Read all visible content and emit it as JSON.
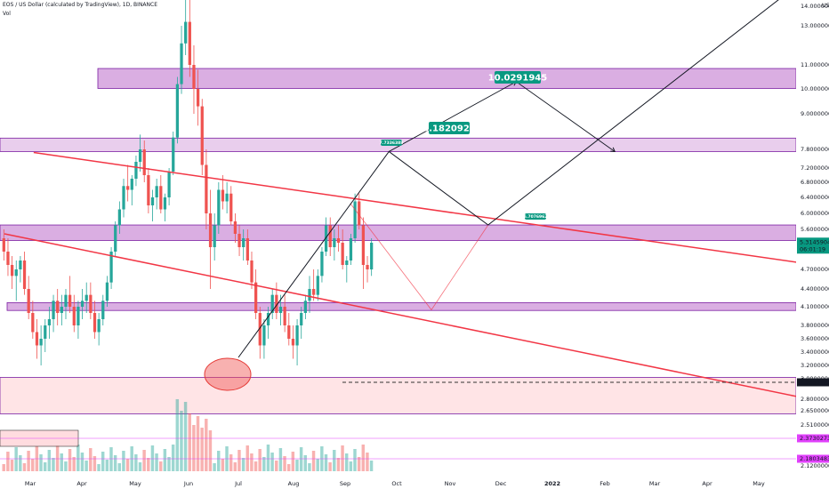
{
  "legend": {
    "title": "EOS / US Dollar (calculated by TradingView), 1D, BINANCE",
    "vol": "Vol"
  },
  "axis": {
    "currency": "USD",
    "y_ticks": [
      {
        "label": "14.0000000",
        "v": 14.0
      },
      {
        "label": "13.0000000",
        "v": 13.0
      },
      {
        "label": "11.0000000",
        "v": 11.0
      },
      {
        "label": "10.0000000",
        "v": 10.0
      },
      {
        "label": "9.0000000",
        "v": 9.0
      },
      {
        "label": "7.8000000",
        "v": 7.8
      },
      {
        "label": "7.2000000",
        "v": 7.2
      },
      {
        "label": "6.8000000",
        "v": 6.8
      },
      {
        "label": "6.4000000",
        "v": 6.4
      },
      {
        "label": "6.0000000",
        "v": 6.0
      },
      {
        "label": "5.6000000",
        "v": 5.6
      },
      {
        "label": "4.7000000",
        "v": 4.7
      },
      {
        "label": "4.4000000",
        "v": 4.4
      },
      {
        "label": "4.1000000",
        "v": 4.1
      },
      {
        "label": "3.8000000",
        "v": 3.8
      },
      {
        "label": "3.6000000",
        "v": 3.6
      },
      {
        "label": "3.4000000",
        "v": 3.4
      },
      {
        "label": "3.2000000",
        "v": 3.2
      },
      {
        "label": "3.0000000",
        "v": 3.0
      },
      {
        "label": "2.8000000",
        "v": 2.8
      },
      {
        "label": "2.6500000",
        "v": 2.65
      },
      {
        "label": "2.5100000",
        "v": 2.51
      },
      {
        "label": "2.4000000",
        "v": 2.4
      },
      {
        "label": "2.1200000",
        "v": 2.12
      }
    ],
    "x_ticks": [
      {
        "label": "Mar",
        "t": 1.5
      },
      {
        "label": "Apr",
        "t": 3.0
      },
      {
        "label": "May",
        "t": 4.0
      },
      {
        "label": "Jun",
        "t": 5.0
      },
      {
        "label": "Jul",
        "t": 6.0
      },
      {
        "label": "Aug",
        "t": 7.0
      },
      {
        "label": "Sep",
        "t": 8.0
      },
      {
        "label": "Oct",
        "t": 9.0
      },
      {
        "label": "Nov",
        "t": 10.0
      },
      {
        "label": "Dec",
        "t": 11.0
      },
      {
        "label": "2022",
        "t": 12.0
      },
      {
        "label": "Feb",
        "t": 13.0
      },
      {
        "label": "Mar",
        "t": 14.0
      },
      {
        "label": "Apr",
        "t": 15.0
      },
      {
        "label": "May",
        "t": 16.0
      }
    ]
  },
  "price_tags": {
    "last_price": "5.3145904",
    "countdown": "06:01:19",
    "dashed_level": "2.9653173",
    "vol_a": "2.3730273",
    "vol_b": "2.1803483"
  },
  "annotations": {
    "target_1": "8.1820925",
    "target_2": "10.0291945",
    "small_1": "7.7336388",
    "small_2": "5.7076962"
  },
  "chart_data": {
    "type": "candlestick",
    "instrument": "EOS / US Dollar",
    "interval": "1D",
    "exchange": "BINANCE",
    "last_price": 5.3145904,
    "zones_price": [
      {
        "kind": "resistance",
        "low": 10.02,
        "high": 10.85,
        "color": "#ce93d8"
      },
      {
        "kind": "resistance",
        "low": 7.73,
        "high": 8.18,
        "color": "#e1bee7"
      },
      {
        "kind": "resistance",
        "low": 5.35,
        "high": 5.71,
        "color": "#ce93d8"
      },
      {
        "kind": "support",
        "low": 4.04,
        "high": 4.17,
        "color": "#ce93d8"
      },
      {
        "kind": "support",
        "low": 2.62,
        "high": 3.02,
        "color": "#ffcdd2"
      }
    ],
    "channel_lines": [
      {
        "from": {
          "month": 1.6,
          "price": 7.7
        },
        "to": {
          "month": 16.8,
          "price": 4.85
        },
        "color": "#f23645"
      },
      {
        "from": {
          "month": 1.0,
          "price": 5.5
        },
        "to": {
          "month": 16.8,
          "price": 2.82
        },
        "color": "#f23645"
      }
    ],
    "projection_path": [
      {
        "month": 6.0,
        "price": 3.32
      },
      {
        "month": 8.85,
        "price": 7.73
      },
      {
        "month": 10.75,
        "price": 5.71
      },
      {
        "month": 16.6,
        "price": 15.2
      }
    ],
    "projection_alt": [
      {
        "month": 8.85,
        "price": 7.73
      },
      {
        "month": 11.3,
        "price": 10.3
      },
      {
        "month": 13.2,
        "price": 7.73
      }
    ],
    "bearish_path": [
      {
        "month": 8.1,
        "price": 6.25
      },
      {
        "month": 9.65,
        "price": 4.05
      },
      {
        "month": 10.75,
        "price": 5.71
      }
    ],
    "price_labels": [
      {
        "text": "8.1820925",
        "month": 9.2,
        "price": 8.18
      },
      {
        "text": "10.0291945",
        "month": 11.0,
        "price": 10.3
      }
    ],
    "candles_ohlc": [
      [
        5.4,
        5.6,
        4.9,
        5.1
      ],
      [
        5.1,
        5.4,
        4.6,
        4.8
      ],
      [
        4.8,
        5.0,
        4.4,
        4.6
      ],
      [
        4.6,
        4.9,
        4.2,
        4.7
      ],
      [
        4.7,
        5.0,
        4.5,
        4.9
      ],
      [
        4.9,
        5.1,
        4.3,
        4.4
      ],
      [
        4.4,
        4.6,
        3.9,
        4.0
      ],
      [
        4.0,
        4.2,
        3.6,
        3.7
      ],
      [
        3.7,
        3.9,
        3.3,
        3.5
      ],
      [
        3.5,
        3.8,
        3.2,
        3.6
      ],
      [
        3.6,
        3.9,
        3.4,
        3.8
      ],
      [
        3.8,
        4.1,
        3.6,
        3.9
      ],
      [
        3.9,
        4.3,
        3.7,
        4.2
      ],
      [
        4.2,
        4.4,
        3.8,
        4.0
      ],
      [
        4.0,
        4.3,
        3.8,
        4.1
      ],
      [
        4.1,
        4.4,
        3.9,
        4.3
      ],
      [
        4.3,
        4.6,
        4.0,
        4.1
      ],
      [
        4.1,
        4.3,
        3.7,
        3.8
      ],
      [
        3.8,
        4.2,
        3.6,
        4.1
      ],
      [
        4.1,
        4.4,
        3.9,
        4.2
      ],
      [
        4.2,
        4.5,
        4.0,
        4.3
      ],
      [
        4.3,
        4.5,
        3.9,
        4.0
      ],
      [
        4.0,
        4.2,
        3.6,
        3.7
      ],
      [
        3.7,
        4.0,
        3.5,
        3.9
      ],
      [
        3.9,
        4.3,
        3.8,
        4.2
      ],
      [
        4.2,
        4.6,
        4.1,
        4.5
      ],
      [
        4.5,
        5.2,
        4.4,
        5.1
      ],
      [
        5.1,
        5.8,
        5.0,
        5.7
      ],
      [
        5.7,
        6.3,
        5.5,
        6.1
      ],
      [
        6.1,
        6.9,
        5.9,
        6.7
      ],
      [
        6.7,
        7.3,
        6.3,
        6.6
      ],
      [
        6.6,
        7.0,
        6.2,
        6.9
      ],
      [
        6.9,
        7.6,
        6.7,
        7.4
      ],
      [
        7.4,
        8.3,
        7.1,
        7.8
      ],
      [
        7.8,
        8.1,
        6.8,
        7.0
      ],
      [
        7.0,
        7.2,
        6.0,
        6.2
      ],
      [
        6.2,
        6.6,
        5.8,
        6.4
      ],
      [
        6.4,
        6.9,
        6.1,
        6.7
      ],
      [
        6.7,
        7.0,
        6.0,
        6.1
      ],
      [
        6.1,
        6.5,
        5.8,
        6.4
      ],
      [
        6.4,
        7.2,
        6.2,
        7.1
      ],
      [
        7.1,
        8.4,
        7.0,
        8.2
      ],
      [
        8.2,
        10.5,
        8.0,
        10.2
      ],
      [
        10.2,
        13.0,
        9.8,
        12.1
      ],
      [
        12.1,
        14.8,
        11.5,
        13.2
      ],
      [
        13.2,
        15.0,
        10.5,
        11.0
      ],
      [
        11.0,
        12.0,
        9.0,
        10.0
      ],
      [
        10.0,
        10.8,
        8.6,
        9.3
      ],
      [
        9.3,
        9.6,
        7.0,
        7.3
      ],
      [
        7.3,
        7.8,
        5.6,
        6.0
      ],
      [
        6.0,
        6.6,
        4.4,
        5.2
      ],
      [
        5.2,
        6.0,
        4.9,
        5.7
      ],
      [
        5.7,
        6.8,
        5.5,
        6.6
      ],
      [
        6.6,
        7.0,
        6.1,
        6.3
      ],
      [
        6.3,
        6.8,
        6.0,
        6.5
      ],
      [
        6.5,
        6.7,
        5.7,
        5.8
      ],
      [
        5.8,
        6.0,
        5.3,
        5.5
      ],
      [
        5.5,
        5.7,
        5.0,
        5.2
      ],
      [
        5.2,
        5.6,
        4.9,
        5.4
      ],
      [
        5.4,
        5.6,
        4.8,
        4.9
      ],
      [
        4.9,
        5.1,
        4.4,
        4.5
      ],
      [
        4.5,
        4.7,
        3.9,
        4.0
      ],
      [
        4.0,
        4.1,
        3.3,
        3.5
      ],
      [
        3.5,
        3.9,
        3.3,
        3.8
      ],
      [
        3.8,
        4.1,
        3.6,
        4.0
      ],
      [
        4.0,
        4.4,
        3.9,
        4.3
      ],
      [
        4.3,
        4.5,
        3.9,
        4.0
      ],
      [
        4.0,
        4.3,
        3.8,
        4.1
      ],
      [
        4.1,
        4.3,
        3.7,
        3.8
      ],
      [
        3.8,
        4.0,
        3.5,
        3.6
      ],
      [
        3.6,
        3.8,
        3.3,
        3.5
      ],
      [
        3.5,
        3.9,
        3.2,
        3.8
      ],
      [
        3.8,
        4.1,
        3.6,
        4.0
      ],
      [
        4.0,
        4.3,
        3.9,
        4.2
      ],
      [
        4.2,
        4.6,
        4.0,
        4.4
      ],
      [
        4.4,
        4.7,
        4.2,
        4.3
      ],
      [
        4.3,
        4.7,
        4.2,
        4.6
      ],
      [
        4.6,
        5.2,
        4.5,
        5.1
      ],
      [
        5.1,
        5.9,
        5.0,
        5.7
      ],
      [
        5.7,
        5.9,
        5.0,
        5.2
      ],
      [
        5.2,
        5.6,
        4.9,
        5.4
      ],
      [
        5.4,
        5.7,
        5.1,
        5.3
      ],
      [
        5.3,
        5.6,
        4.7,
        4.8
      ],
      [
        4.8,
        5.0,
        4.5,
        4.9
      ],
      [
        4.9,
        5.5,
        4.8,
        5.4
      ],
      [
        5.4,
        6.5,
        5.3,
        6.3
      ],
      [
        6.3,
        6.5,
        5.6,
        5.7
      ],
      [
        5.7,
        5.9,
        4.4,
        4.8
      ],
      [
        4.8,
        5.0,
        4.5,
        4.7
      ],
      [
        4.7,
        5.4,
        4.6,
        5.3
      ]
    ],
    "annotation_ellipse": {
      "month": 6.0,
      "price": 3.2
    }
  }
}
